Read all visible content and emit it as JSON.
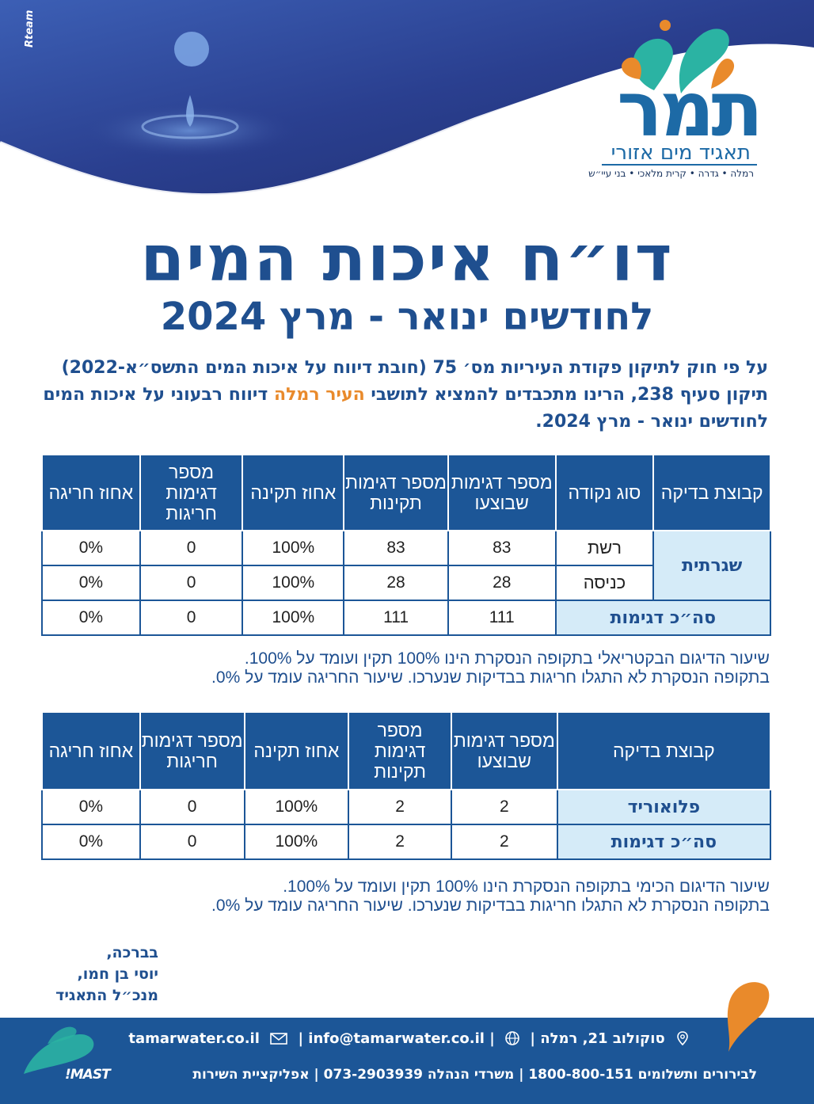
{
  "header": {
    "credit": "Rteam",
    "logo_text": "תמר",
    "logo_subtitle": "תאגיד מים אזורי",
    "logo_cities": "רמלה • גדרה • קרית מלאכי • בני עיי״ש"
  },
  "title": {
    "main": "דו״ח איכות המים",
    "sub": "לחודשים ינואר - מרץ 2024"
  },
  "intro": {
    "text_before": "על פי חוק לתיקון פקודת העיריות מס׳ 75 (חובת דיווח על איכות המים התשס״א-2022) תיקון סעיף 238, הרינו מתכבדים להמציא לתושבי",
    "highlight": "העיר רמלה",
    "text_after": "דיווח רבעוני על איכות המים לחודשים ינואר - מרץ 2024."
  },
  "table1": {
    "headers": [
      "קבוצת בדיקה",
      "סוג נקודה",
      "מספר דגימות שבוצעו",
      "מספר דגימות תקינות",
      "אחוז תקינה",
      "מספר דגימות חריגות",
      "אחוז חריגה"
    ],
    "group_label": "שגרתית",
    "rows": [
      {
        "point": "רשת",
        "done": "83",
        "ok": "83",
        "pct_ok": "100%",
        "bad": "0",
        "pct_bad": "0%"
      },
      {
        "point": "כניסה",
        "done": "28",
        "ok": "28",
        "pct_ok": "100%",
        "bad": "0",
        "pct_bad": "0%"
      }
    ],
    "total": {
      "label": "סה״כ דגימות",
      "done": "111",
      "ok": "111",
      "pct_ok": "100%",
      "bad": "0",
      "pct_bad": "0%"
    }
  },
  "note1": {
    "line1": "שיעור הדיגום הבקטריאלי בתקופה הנסקרת הינו 100% תקין ועומד על 100%.",
    "line2": "בתקופה הנסקרת לא התגלו חריגות בבדיקות שנערכו. שיעור החריגה עומד על 0%."
  },
  "table2": {
    "headers": [
      "קבוצת בדיקה",
      "מספר דגימות שבוצעו",
      "מספר דגימות תקינות",
      "אחוז תקינה",
      "מספר דגימות חריגות",
      "אחוז חריגה"
    ],
    "rows": [
      {
        "group": "פלואוריד",
        "done": "2",
        "ok": "2",
        "pct_ok": "100%",
        "bad": "0",
        "pct_bad": "0%"
      },
      {
        "group": "סה״כ דגימות",
        "done": "2",
        "ok": "2",
        "pct_ok": "100%",
        "bad": "0",
        "pct_bad": "0%"
      }
    ]
  },
  "note2": {
    "line1": "שיעור הדיגום הכימי בתקופה הנסקרת הינו 100% תקין ועומד על 100%.",
    "line2": "בתקופה הנסקרת לא התגלו חריגות בבדיקות שנערכו. שיעור החריגה עומד על 0%."
  },
  "signature": {
    "line1": "בברכה,",
    "line2": "יוסי בן חמו,",
    "line3": "מנכ״ל התאגיד"
  },
  "footer": {
    "address": "סוקולוב 21, רמלה",
    "email": "info@tamarwater.co.il",
    "website": "tamarwater.co.il",
    "contact_line": "לבירורים ותשלומים 1800-800-151 | משרדי הנהלה 073-2903939 | אפליקציית השירות",
    "app_name": "MAST!",
    "icons": [
      "map-pin-icon",
      "globe-icon",
      "email-icon"
    ]
  },
  "colors": {
    "primary": "#1c5697",
    "title": "#1f4f8f",
    "accent_orange": "#e98a2b",
    "accent_teal": "#2bb3a3",
    "light_cell": "#d5ebf8"
  }
}
